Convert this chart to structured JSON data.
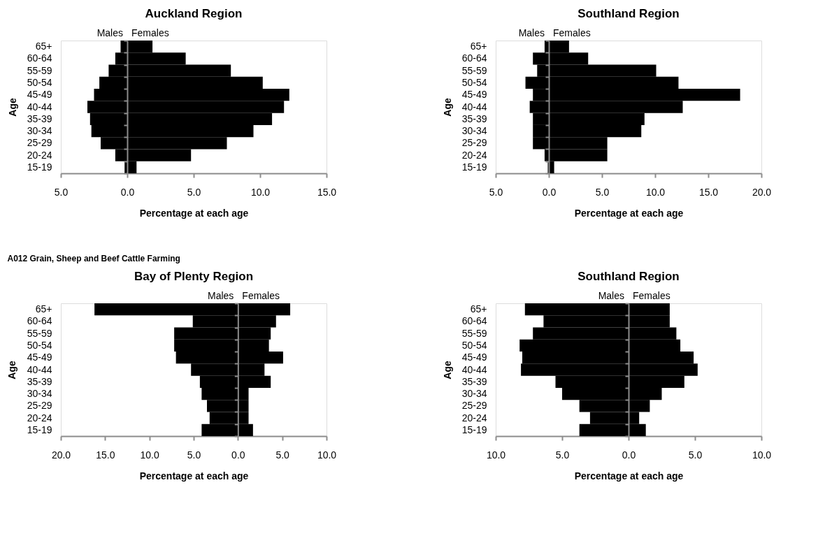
{
  "chart_data": [
    {
      "type": "bar",
      "orientation": "horizontal",
      "stacked": true,
      "title": "Auckland Region",
      "xlabel": "Percentage at each age",
      "ylabel": "Age",
      "categories": [
        "65+",
        "60-64",
        "55-59",
        "50-54",
        "45-49",
        "40-44",
        "35-39",
        "30-34",
        "25-29",
        "20-24",
        "15-19"
      ],
      "series": [
        {
          "name": "Males",
          "color": "#000000",
          "values": [
            -0.5,
            -0.9,
            -1.4,
            -2.1,
            -2.5,
            -3.0,
            -2.8,
            -2.7,
            -2.0,
            -0.9,
            -0.2
          ]
        },
        {
          "name": "Females",
          "color": "#000000",
          "values": [
            1.9,
            4.4,
            7.8,
            10.2,
            12.2,
            11.8,
            10.9,
            9.5,
            7.5,
            4.8,
            0.7
          ]
        }
      ],
      "xlim": [
        -5,
        15
      ],
      "xticks": [
        {
          "value": -5,
          "label": "5.0"
        },
        {
          "value": 0,
          "label": "0.0"
        },
        {
          "value": 5,
          "label": "5.0"
        },
        {
          "value": 10,
          "label": "10.0"
        },
        {
          "value": 15,
          "label": "15.0"
        }
      ]
    },
    {
      "type": "bar",
      "orientation": "horizontal",
      "stacked": true,
      "title": "Southland Region",
      "xlabel": "Percentage at each age",
      "ylabel": "Age",
      "categories": [
        "65+",
        "60-64",
        "55-59",
        "50-54",
        "45-49",
        "40-44",
        "35-39",
        "30-34",
        "25-29",
        "20-24",
        "15-19"
      ],
      "series": [
        {
          "name": "Males",
          "color": "#000000",
          "values": [
            -0.4,
            -1.5,
            -1.1,
            -2.2,
            -1.5,
            -1.8,
            -1.5,
            -1.5,
            -1.5,
            -0.4,
            -0.1
          ]
        },
        {
          "name": "Females",
          "color": "#000000",
          "values": [
            1.9,
            3.7,
            10.1,
            12.2,
            18.0,
            12.6,
            9.0,
            8.7,
            5.5,
            5.5,
            0.5
          ]
        }
      ],
      "xlim": [
        -5,
        20
      ],
      "xticks": [
        {
          "value": -5,
          "label": "5.0"
        },
        {
          "value": 0,
          "label": "0.0"
        },
        {
          "value": 5,
          "label": "5.0"
        },
        {
          "value": 10,
          "label": "10.0"
        },
        {
          "value": 15,
          "label": "15.0"
        },
        {
          "value": 20,
          "label": "20.0"
        }
      ]
    },
    {
      "type": "bar",
      "orientation": "horizontal",
      "stacked": true,
      "title": "Bay of Plenty Region",
      "xlabel": "Percentage at each age",
      "ylabel": "Age",
      "annotations": [
        "A012 Grain, Sheep and Beef Cattle Farming"
      ],
      "categories": [
        "65+",
        "60-64",
        "55-59",
        "50-54",
        "45-49",
        "40-44",
        "35-39",
        "30-34",
        "25-29",
        "20-24",
        "15-19"
      ],
      "series": [
        {
          "name": "Males",
          "color": "#000000",
          "values": [
            -16.2,
            -5.1,
            -7.2,
            -7.2,
            -7.0,
            -5.3,
            -4.3,
            -4.1,
            -3.5,
            -3.2,
            -4.1
          ]
        },
        {
          "name": "Females",
          "color": "#000000",
          "values": [
            5.9,
            4.3,
            3.7,
            3.5,
            5.1,
            3.0,
            3.7,
            1.2,
            1.2,
            1.2,
            1.7
          ]
        }
      ],
      "xlim": [
        -20,
        10
      ],
      "xticks": [
        {
          "value": -20,
          "label": "20.0"
        },
        {
          "value": -15,
          "label": "15.0"
        },
        {
          "value": -10,
          "label": "10.0"
        },
        {
          "value": -5,
          "label": "5.0"
        },
        {
          "value": 0,
          "label": "0.0"
        },
        {
          "value": 5,
          "label": "5.0"
        },
        {
          "value": 10,
          "label": "10.0"
        }
      ]
    },
    {
      "type": "bar",
      "orientation": "horizontal",
      "stacked": true,
      "title": "Southland Region",
      "xlabel": "Percentage at each age",
      "ylabel": "Age",
      "categories": [
        "65+",
        "60-64",
        "55-59",
        "50-54",
        "45-49",
        "40-44",
        "35-39",
        "30-34",
        "25-29",
        "20-24",
        "15-19"
      ],
      "series": [
        {
          "name": "Males",
          "color": "#000000",
          "values": [
            -7.8,
            -6.4,
            -7.2,
            -8.2,
            -8.0,
            -8.1,
            -5.5,
            -5.0,
            -3.7,
            -2.9,
            -3.7
          ]
        },
        {
          "name": "Females",
          "color": "#000000",
          "values": [
            3.1,
            3.1,
            3.6,
            3.9,
            4.9,
            5.2,
            4.2,
            2.5,
            1.6,
            0.8,
            1.3
          ]
        }
      ],
      "xlim": [
        -10,
        10
      ],
      "xticks": [
        {
          "value": -10,
          "label": "10.0"
        },
        {
          "value": -5,
          "label": "5.0"
        },
        {
          "value": 0,
          "label": "0.0"
        },
        {
          "value": 5,
          "label": "5.0"
        },
        {
          "value": 10,
          "label": "10.0"
        }
      ]
    }
  ]
}
